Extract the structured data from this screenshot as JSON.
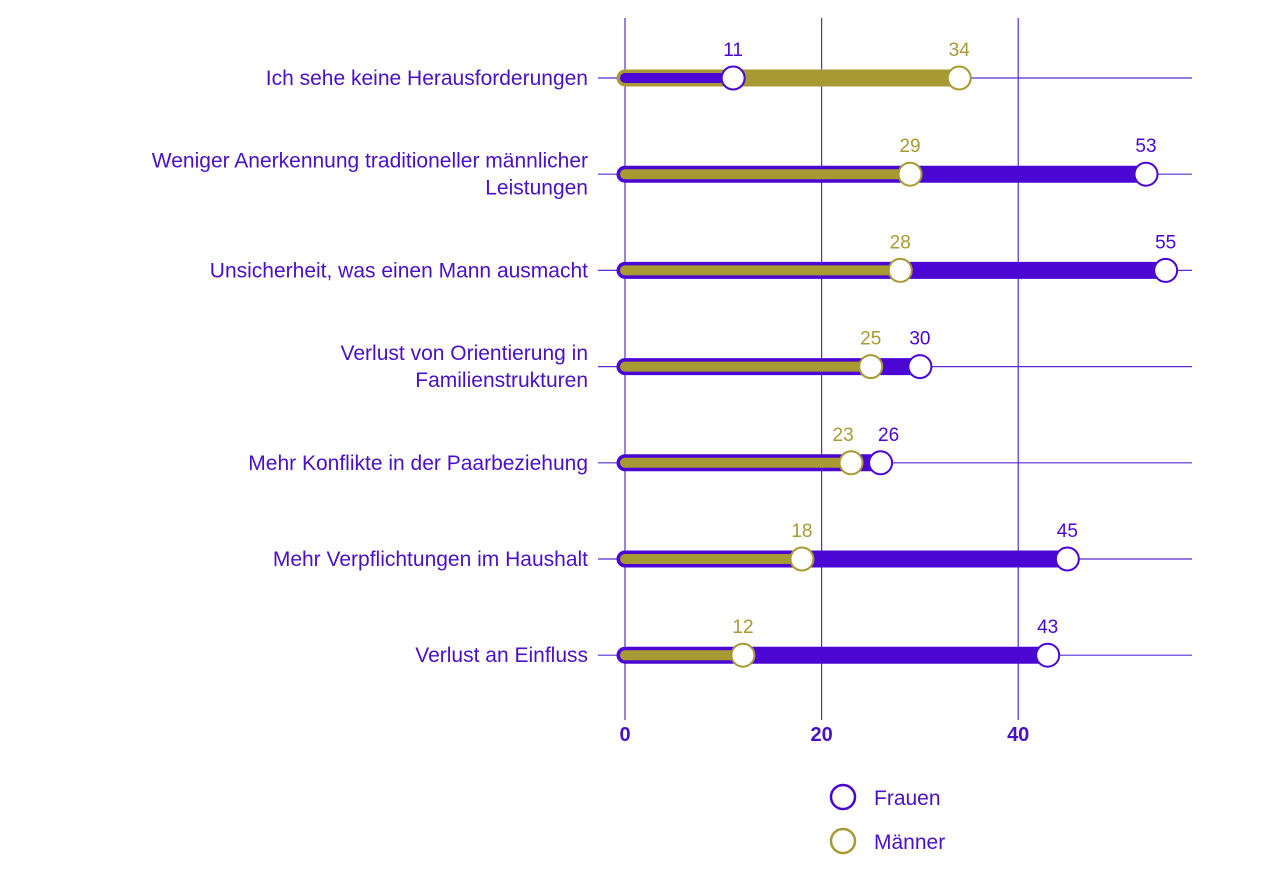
{
  "chart_data": {
    "type": "bar",
    "orientation": "horizontal",
    "categories": [
      [
        "Ich sehe keine Herausforderungen"
      ],
      [
        "Weniger Anerkennung traditioneller männlicher",
        "Leistungen"
      ],
      [
        "Unsicherheit, was einen Mann ausmacht"
      ],
      [
        "Verlust von Orientierung in",
        "Familienstrukturen"
      ],
      [
        "Mehr Konflikte in der Paarbeziehung"
      ],
      [
        "Mehr Verpflichtungen im Haushalt"
      ],
      [
        "Verlust an Einfluss"
      ]
    ],
    "series": [
      {
        "name": "Frauen",
        "color": "#4a06d2",
        "values": [
          11,
          53,
          55,
          30,
          26,
          45,
          43
        ]
      },
      {
        "name": "Männer",
        "color": "#a89a33",
        "values": [
          34,
          29,
          28,
          25,
          23,
          18,
          12
        ]
      }
    ],
    "xticks": [
      "0",
      "20",
      "40"
    ],
    "xtick_values": [
      0,
      20,
      40
    ],
    "xlim": [
      0,
      58
    ],
    "grid": true,
    "legend_position": "bottom"
  }
}
